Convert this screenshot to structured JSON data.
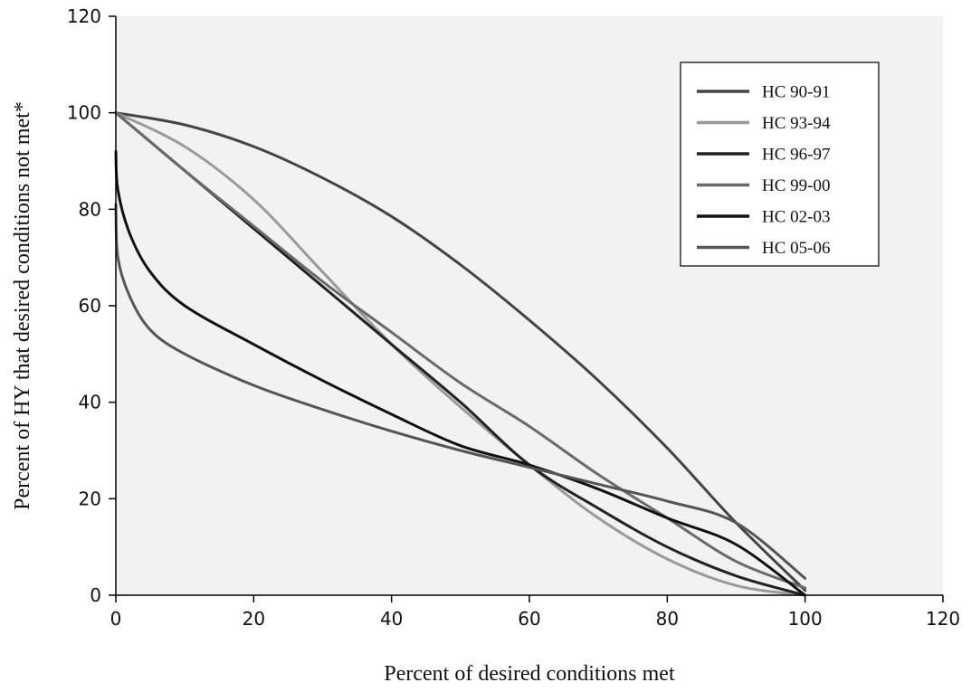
{
  "chart_data": {
    "type": "line",
    "xlabel": "Percent of desired conditions met",
    "ylabel": "Percent of HY that desired conditions not met*",
    "xlim": [
      0,
      120
    ],
    "ylim": [
      0,
      120
    ],
    "xticks": [
      0,
      20,
      40,
      60,
      80,
      100,
      120
    ],
    "yticks": [
      0,
      20,
      40,
      60,
      80,
      100,
      120
    ],
    "grid": false,
    "legend_position": "top-right",
    "series": [
      {
        "name": "HC 90-91",
        "color": "#444444",
        "x": [
          0,
          10,
          20,
          30,
          40,
          50,
          60,
          70,
          80,
          90,
          100
        ],
        "y": [
          100,
          97.5,
          93,
          86.5,
          78.5,
          68.5,
          57,
          44.5,
          30.5,
          15,
          1
        ]
      },
      {
        "name": "HC 93-94",
        "color": "#9a9a9a",
        "x": [
          0,
          10,
          20,
          30,
          40,
          50,
          60,
          70,
          80,
          90,
          100
        ],
        "y": [
          100,
          93,
          82,
          67,
          52,
          39,
          27,
          16,
          7.5,
          2,
          0
        ]
      },
      {
        "name": "HC 96-97",
        "color": "#222222",
        "x": [
          0,
          10,
          20,
          30,
          40,
          50,
          60,
          70,
          80,
          90,
          100
        ],
        "y": [
          100,
          88,
          76,
          64,
          52,
          40,
          27,
          18,
          10,
          4,
          0
        ]
      },
      {
        "name": "HC 99-00",
        "color": "#6a6a6a",
        "x": [
          0,
          10,
          20,
          30,
          40,
          50,
          60,
          70,
          80,
          90,
          100
        ],
        "y": [
          100,
          88,
          76.5,
          65,
          54.5,
          44,
          35,
          25,
          16,
          7,
          1.5
        ]
      },
      {
        "name": "HC 02-03",
        "color": "#111111",
        "x": [
          0,
          0.3,
          2,
          5,
          10,
          20,
          30,
          40,
          50,
          60,
          70,
          80,
          90,
          100
        ],
        "y": [
          92,
          84,
          75,
          67,
          60,
          52,
          44.5,
          37.5,
          31,
          27,
          22,
          16,
          10.5,
          0
        ]
      },
      {
        "name": "HC 05-06",
        "color": "#555555",
        "x": [
          0,
          0.3,
          2,
          5,
          10,
          20,
          30,
          40,
          50,
          60,
          70,
          80,
          90,
          100
        ],
        "y": [
          81,
          70,
          62,
          55,
          50,
          43.5,
          38.5,
          34,
          30,
          26.5,
          23,
          19.5,
          15,
          3.5
        ]
      }
    ]
  }
}
